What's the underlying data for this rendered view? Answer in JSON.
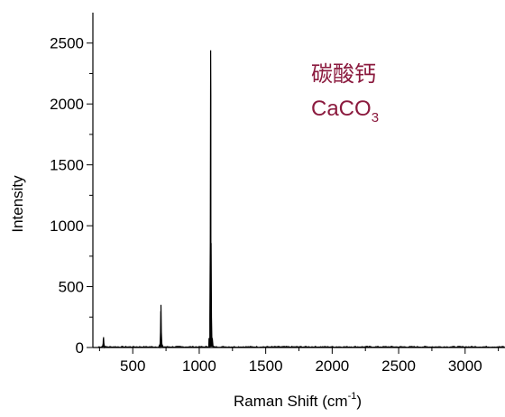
{
  "chart_data": {
    "type": "line",
    "title": "",
    "xlabel": {
      "text": "Raman Shift (cm",
      "sup": "-1",
      "suffix": ")"
    },
    "ylabel": "Intensity",
    "xlim": [
      200,
      3300
    ],
    "ylim": [
      0,
      2750
    ],
    "x_ticks": [
      500,
      1000,
      1500,
      2000,
      2500,
      3000
    ],
    "x_tick_labels": [
      "500",
      "1000",
      "1500",
      "2000",
      "2500",
      "3000"
    ],
    "x_minor_ticks": [
      250,
      750,
      1250,
      1750,
      2250,
      2750,
      3250
    ],
    "y_ticks": [
      0,
      500,
      1000,
      1500,
      2000,
      2500
    ],
    "y_tick_labels": [
      "0",
      "500",
      "1000",
      "1500",
      "2000",
      "2500"
    ],
    "y_minor_ticks": [
      250,
      750,
      1250,
      1750,
      2250
    ],
    "grid": false,
    "annotation": {
      "line1": "碳酸钙",
      "line2_base": "CaCO",
      "line2_sub": "3",
      "color": "#8b1a3e"
    },
    "line_color": "#000000",
    "baseline": 5,
    "peaks": [
      {
        "x": 280,
        "y": 85
      },
      {
        "x": 712,
        "y": 350
      },
      {
        "x": 1086,
        "y": 2440
      }
    ]
  }
}
